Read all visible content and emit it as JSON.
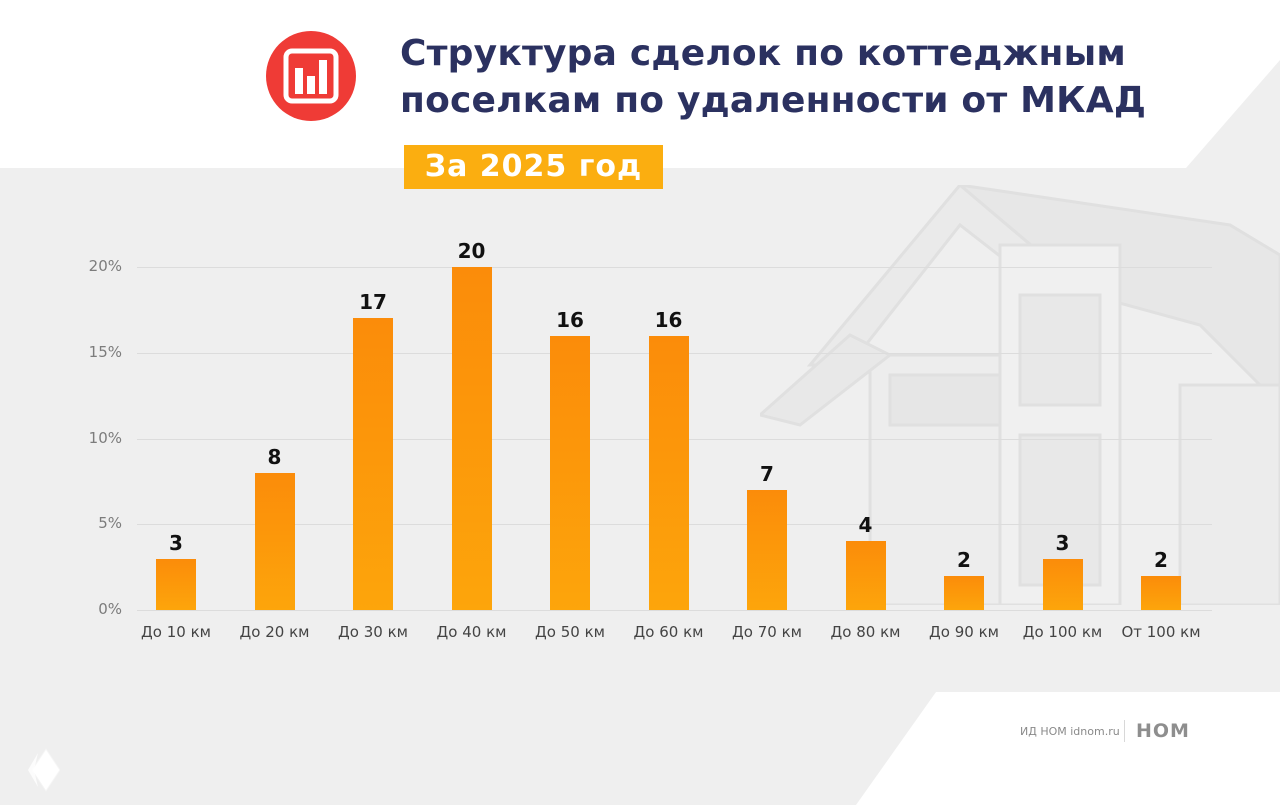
{
  "header": {
    "title_line1": "Структура сделок по коттеджным",
    "title_line2": "поселкам по удаленности от МКАД",
    "badge": "За 2025 год",
    "logo_icon": "bar-chart-icon"
  },
  "footer": {
    "source_text": "ИД НОМ idnom.ru",
    "brand": "НОМ"
  },
  "colors": {
    "title": "#2b3160",
    "badge": "#fbae10",
    "logo_circle": "#ef3b36",
    "bar_top": "#fb8c0a",
    "bar_bottom": "#fda50b"
  },
  "chart_data": {
    "type": "bar",
    "title": "Структура сделок по коттеджным поселкам по удаленности от МКАД",
    "subtitle": "За 2025 год",
    "xlabel": "",
    "ylabel": "",
    "categories": [
      "До 10 км",
      "До 20 км",
      "До 30 км",
      "До 40 км",
      "До 50 км",
      "До 60 км",
      "До 70 км",
      "До 80 км",
      "До 90 км",
      "До 100 км",
      "От 100 км"
    ],
    "values": [
      3,
      8,
      17,
      20,
      16,
      16,
      7,
      4,
      2,
      3,
      2
    ],
    "unit": "%",
    "ylim": [
      0,
      20
    ],
    "yticks": [
      "0%",
      "5%",
      "10%",
      "15%",
      "20%"
    ],
    "grid": true,
    "legend": null
  }
}
